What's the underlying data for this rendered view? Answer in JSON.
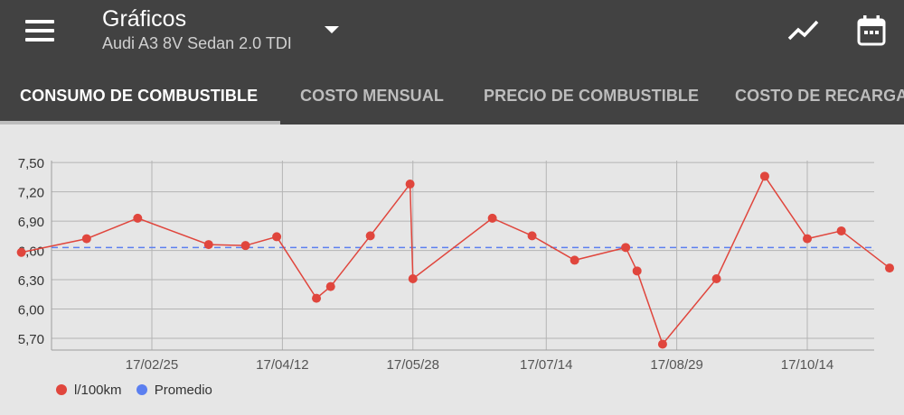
{
  "app": {
    "title": "Gráficos",
    "subtitle": "Audi A3 8V Sedan 2.0 TDI"
  },
  "icons": {
    "menu": "menu-icon",
    "dropdown": "arrow-drop-down-icon",
    "chart": "trending-icon",
    "calendar": "calendar-icon"
  },
  "tabs": [
    {
      "label": "CONSUMO DE COMBUSTIBLE",
      "active": true
    },
    {
      "label": "COSTO MENSUAL",
      "active": false
    },
    {
      "label": "PRECIO DE COMBUSTIBLE",
      "active": false
    },
    {
      "label": "COSTO DE RECARGA",
      "active": false
    }
  ],
  "colors": {
    "topbar": "#424242",
    "series": "#e0463d",
    "average": "#5b7ff0",
    "background": "#e6e6e6"
  },
  "chart_data": {
    "type": "line",
    "y_ticks": [
      "7,50",
      "7,20",
      "6,90",
      "6,60",
      "6,30",
      "6,00",
      "5,70"
    ],
    "x_ticks": [
      "17/02/25",
      "17/04/12",
      "17/05/28",
      "17/07/14",
      "17/08/29",
      "17/10/14"
    ],
    "ylim": [
      5.58,
      7.52
    ],
    "grid": true,
    "series": [
      {
        "name": "l/100km",
        "color": "#e0463d",
        "points": [
          [
            "2017-01-10",
            6.58
          ],
          [
            "2017-02-02",
            6.72
          ],
          [
            "2017-02-20",
            6.93
          ],
          [
            "2017-03-17",
            6.66
          ],
          [
            "2017-03-30",
            6.65
          ],
          [
            "2017-04-10",
            6.74
          ],
          [
            "2017-04-24",
            6.11
          ],
          [
            "2017-04-29",
            6.23
          ],
          [
            "2017-05-13",
            6.75
          ],
          [
            "2017-05-27",
            7.28
          ],
          [
            "2017-05-28",
            6.31
          ],
          [
            "2017-06-25",
            6.93
          ],
          [
            "2017-07-09",
            6.75
          ],
          [
            "2017-07-24",
            6.5
          ],
          [
            "2017-08-11",
            6.63
          ],
          [
            "2017-08-15",
            6.39
          ],
          [
            "2017-08-24",
            5.64
          ],
          [
            "2017-09-12",
            6.31
          ],
          [
            "2017-09-29",
            7.36
          ],
          [
            "2017-10-14",
            6.72
          ],
          [
            "2017-10-26",
            6.8
          ],
          [
            "2017-11-12",
            6.42
          ]
        ]
      },
      {
        "name": "Promedio",
        "color": "#5b7ff0",
        "value": 6.63
      }
    ],
    "legend": [
      "l/100km",
      "Promedio"
    ],
    "legend_position": "bottom-left"
  }
}
